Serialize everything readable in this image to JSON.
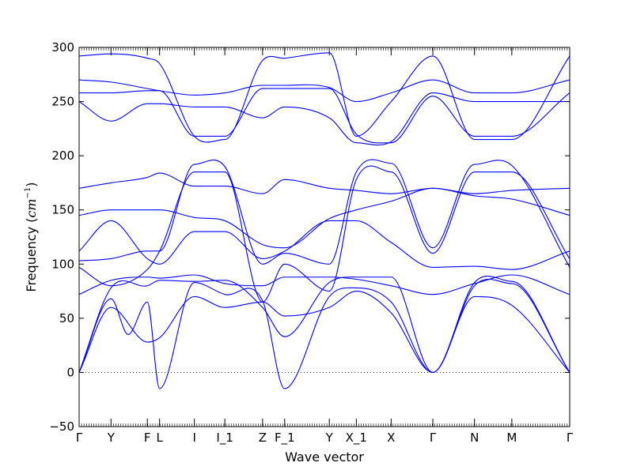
{
  "chart_data": {
    "type": "line",
    "title": "",
    "xlabel": "Wave vector",
    "ylabel": "Frequency",
    "ylabel_unit_main": "cm",
    "ylabel_unit_exp": "−1",
    "ylim": [
      -50,
      300
    ],
    "yticks": [
      -50,
      0,
      50,
      100,
      150,
      200,
      250,
      300
    ],
    "ytick_labels": [
      "−50",
      "0",
      "50",
      "100",
      "150",
      "200",
      "250",
      "300"
    ],
    "grid": false,
    "zero_line": {
      "value": 0,
      "style": "dotted",
      "color": "#000000"
    },
    "line_color": "#0000ff",
    "high_symmetry_points": [
      {
        "label": "Γ",
        "x": 0.0
      },
      {
        "label": "Y",
        "x": 0.065
      },
      {
        "label": "F",
        "x": 0.139
      },
      {
        "label": "L",
        "x": 0.164
      },
      {
        "label": "I",
        "x": 0.235
      },
      {
        "label": "I_1",
        "x": 0.297
      },
      {
        "label": "Z",
        "x": 0.374
      },
      {
        "label": "F_1",
        "x": 0.419
      },
      {
        "label": "Y",
        "x": 0.51
      },
      {
        "label": "X_1",
        "x": 0.565
      },
      {
        "label": "X",
        "x": 0.636
      },
      {
        "label": "Γ",
        "x": 0.721
      },
      {
        "label": "N",
        "x": 0.806
      },
      {
        "label": "M",
        "x": 0.882
      },
      {
        "label": "Γ",
        "x": 1.0
      }
    ],
    "series": [
      {
        "x": [
          0,
          0.065,
          0.139,
          0.164,
          0.235,
          0.297,
          0.374,
          0.419,
          0.51,
          0.565,
          0.636,
          0.721,
          0.806,
          0.882,
          1.0
        ],
        "y": [
          0,
          60,
          28,
          32,
          70,
          60,
          65,
          52,
          60,
          75,
          55,
          0,
          70,
          62,
          0
        ]
      },
      {
        "x": [
          0,
          0.065,
          0.1,
          0.139,
          0.164,
          0.235,
          0.297,
          0.374,
          0.419,
          0.51,
          0.565,
          0.636,
          0.721,
          0.806,
          0.882,
          1.0
        ],
        "y": [
          0,
          68,
          35,
          65,
          -15,
          83,
          72,
          66,
          -15,
          70,
          78,
          65,
          0,
          80,
          82,
          0
        ]
      },
      {
        "x": [
          0,
          0.065,
          0.139,
          0.164,
          0.235,
          0.297,
          0.374,
          0.419,
          0.51,
          0.565,
          0.636,
          0.721,
          0.806,
          0.882,
          1.0
        ],
        "y": [
          0,
          78,
          80,
          85,
          84,
          85,
          60,
          33,
          83,
          88,
          88,
          0,
          83,
          84,
          0
        ]
      },
      {
        "x": [
          0,
          0.065,
          0.139,
          0.164,
          0.235,
          0.297,
          0.374,
          0.419,
          0.51,
          0.565,
          0.636,
          0.721,
          0.806,
          0.882,
          1.0
        ],
        "y": [
          72,
          85,
          88,
          87,
          90,
          82,
          80,
          88,
          88,
          86,
          80,
          72,
          82,
          90,
          72
        ]
      },
      {
        "x": [
          0,
          0.065,
          0.139,
          0.164,
          0.235,
          0.297,
          0.374,
          0.419,
          0.51,
          0.565,
          0.636,
          0.721,
          0.806,
          0.882,
          1.0
        ],
        "y": [
          97,
          80,
          95,
          112,
          185,
          185,
          65,
          100,
          75,
          178,
          185,
          110,
          185,
          185,
          105
        ]
      },
      {
        "x": [
          0,
          0.065,
          0.139,
          0.164,
          0.235,
          0.297,
          0.374,
          0.419,
          0.51,
          0.565,
          0.636,
          0.721,
          0.806,
          0.882,
          1.0
        ],
        "y": [
          103,
          105,
          112,
          112,
          192,
          190,
          100,
          110,
          100,
          185,
          193,
          115,
          192,
          191,
          97
        ]
      },
      {
        "x": [
          0,
          0.065,
          0.139,
          0.164,
          0.235,
          0.297,
          0.374,
          0.419,
          0.51,
          0.565,
          0.636,
          0.721,
          0.806,
          0.882,
          1.0
        ],
        "y": [
          112,
          140,
          105,
          100,
          130,
          130,
          105,
          112,
          140,
          140,
          120,
          97,
          98,
          95,
          112
        ]
      },
      {
        "x": [
          0,
          0.065,
          0.139,
          0.164,
          0.235,
          0.297,
          0.374,
          0.419,
          0.51,
          0.565,
          0.636,
          0.721,
          0.806,
          0.882,
          1.0
        ],
        "y": [
          145,
          150,
          150,
          150,
          143,
          140,
          118,
          115,
          142,
          150,
          158,
          170,
          163,
          160,
          145
        ]
      },
      {
        "x": [
          0,
          0.065,
          0.139,
          0.164,
          0.235,
          0.297,
          0.374,
          0.419,
          0.51,
          0.565,
          0.636,
          0.721,
          0.806,
          0.882,
          1.0
        ],
        "y": [
          170,
          175,
          180,
          184,
          172,
          172,
          165,
          178,
          170,
          168,
          165,
          170,
          165,
          168,
          170
        ]
      },
      {
        "x": [
          0,
          0.065,
          0.139,
          0.164,
          0.235,
          0.297,
          0.374,
          0.419,
          0.51,
          0.565,
          0.636,
          0.721,
          0.806,
          0.882,
          1.0
        ],
        "y": [
          250,
          232,
          248,
          248,
          245,
          245,
          235,
          245,
          235,
          212,
          213,
          258,
          250,
          250,
          250
        ]
      },
      {
        "x": [
          0,
          0.065,
          0.139,
          0.164,
          0.235,
          0.297,
          0.374,
          0.419,
          0.51,
          0.565,
          0.636,
          0.721,
          0.806,
          0.882,
          1.0
        ],
        "y": [
          258,
          258,
          260,
          260,
          218,
          218,
          262,
          262,
          262,
          220,
          212,
          255,
          218,
          218,
          258
        ]
      },
      {
        "x": [
          0,
          0.065,
          0.139,
          0.164,
          0.235,
          0.297,
          0.374,
          0.419,
          0.51,
          0.565,
          0.636,
          0.721,
          0.806,
          0.882,
          1.0
        ],
        "y": [
          270,
          268,
          262,
          260,
          256,
          258,
          265,
          265,
          263,
          250,
          258,
          270,
          258,
          258,
          270
        ]
      },
      {
        "x": [
          0,
          0.065,
          0.139,
          0.164,
          0.235,
          0.297,
          0.374,
          0.419,
          0.51,
          0.565,
          0.636,
          0.721,
          0.806,
          0.882,
          1.0
        ],
        "y": [
          292,
          294,
          290,
          285,
          218,
          215,
          288,
          290,
          295,
          218,
          250,
          292,
          215,
          215,
          292
        ]
      }
    ]
  }
}
